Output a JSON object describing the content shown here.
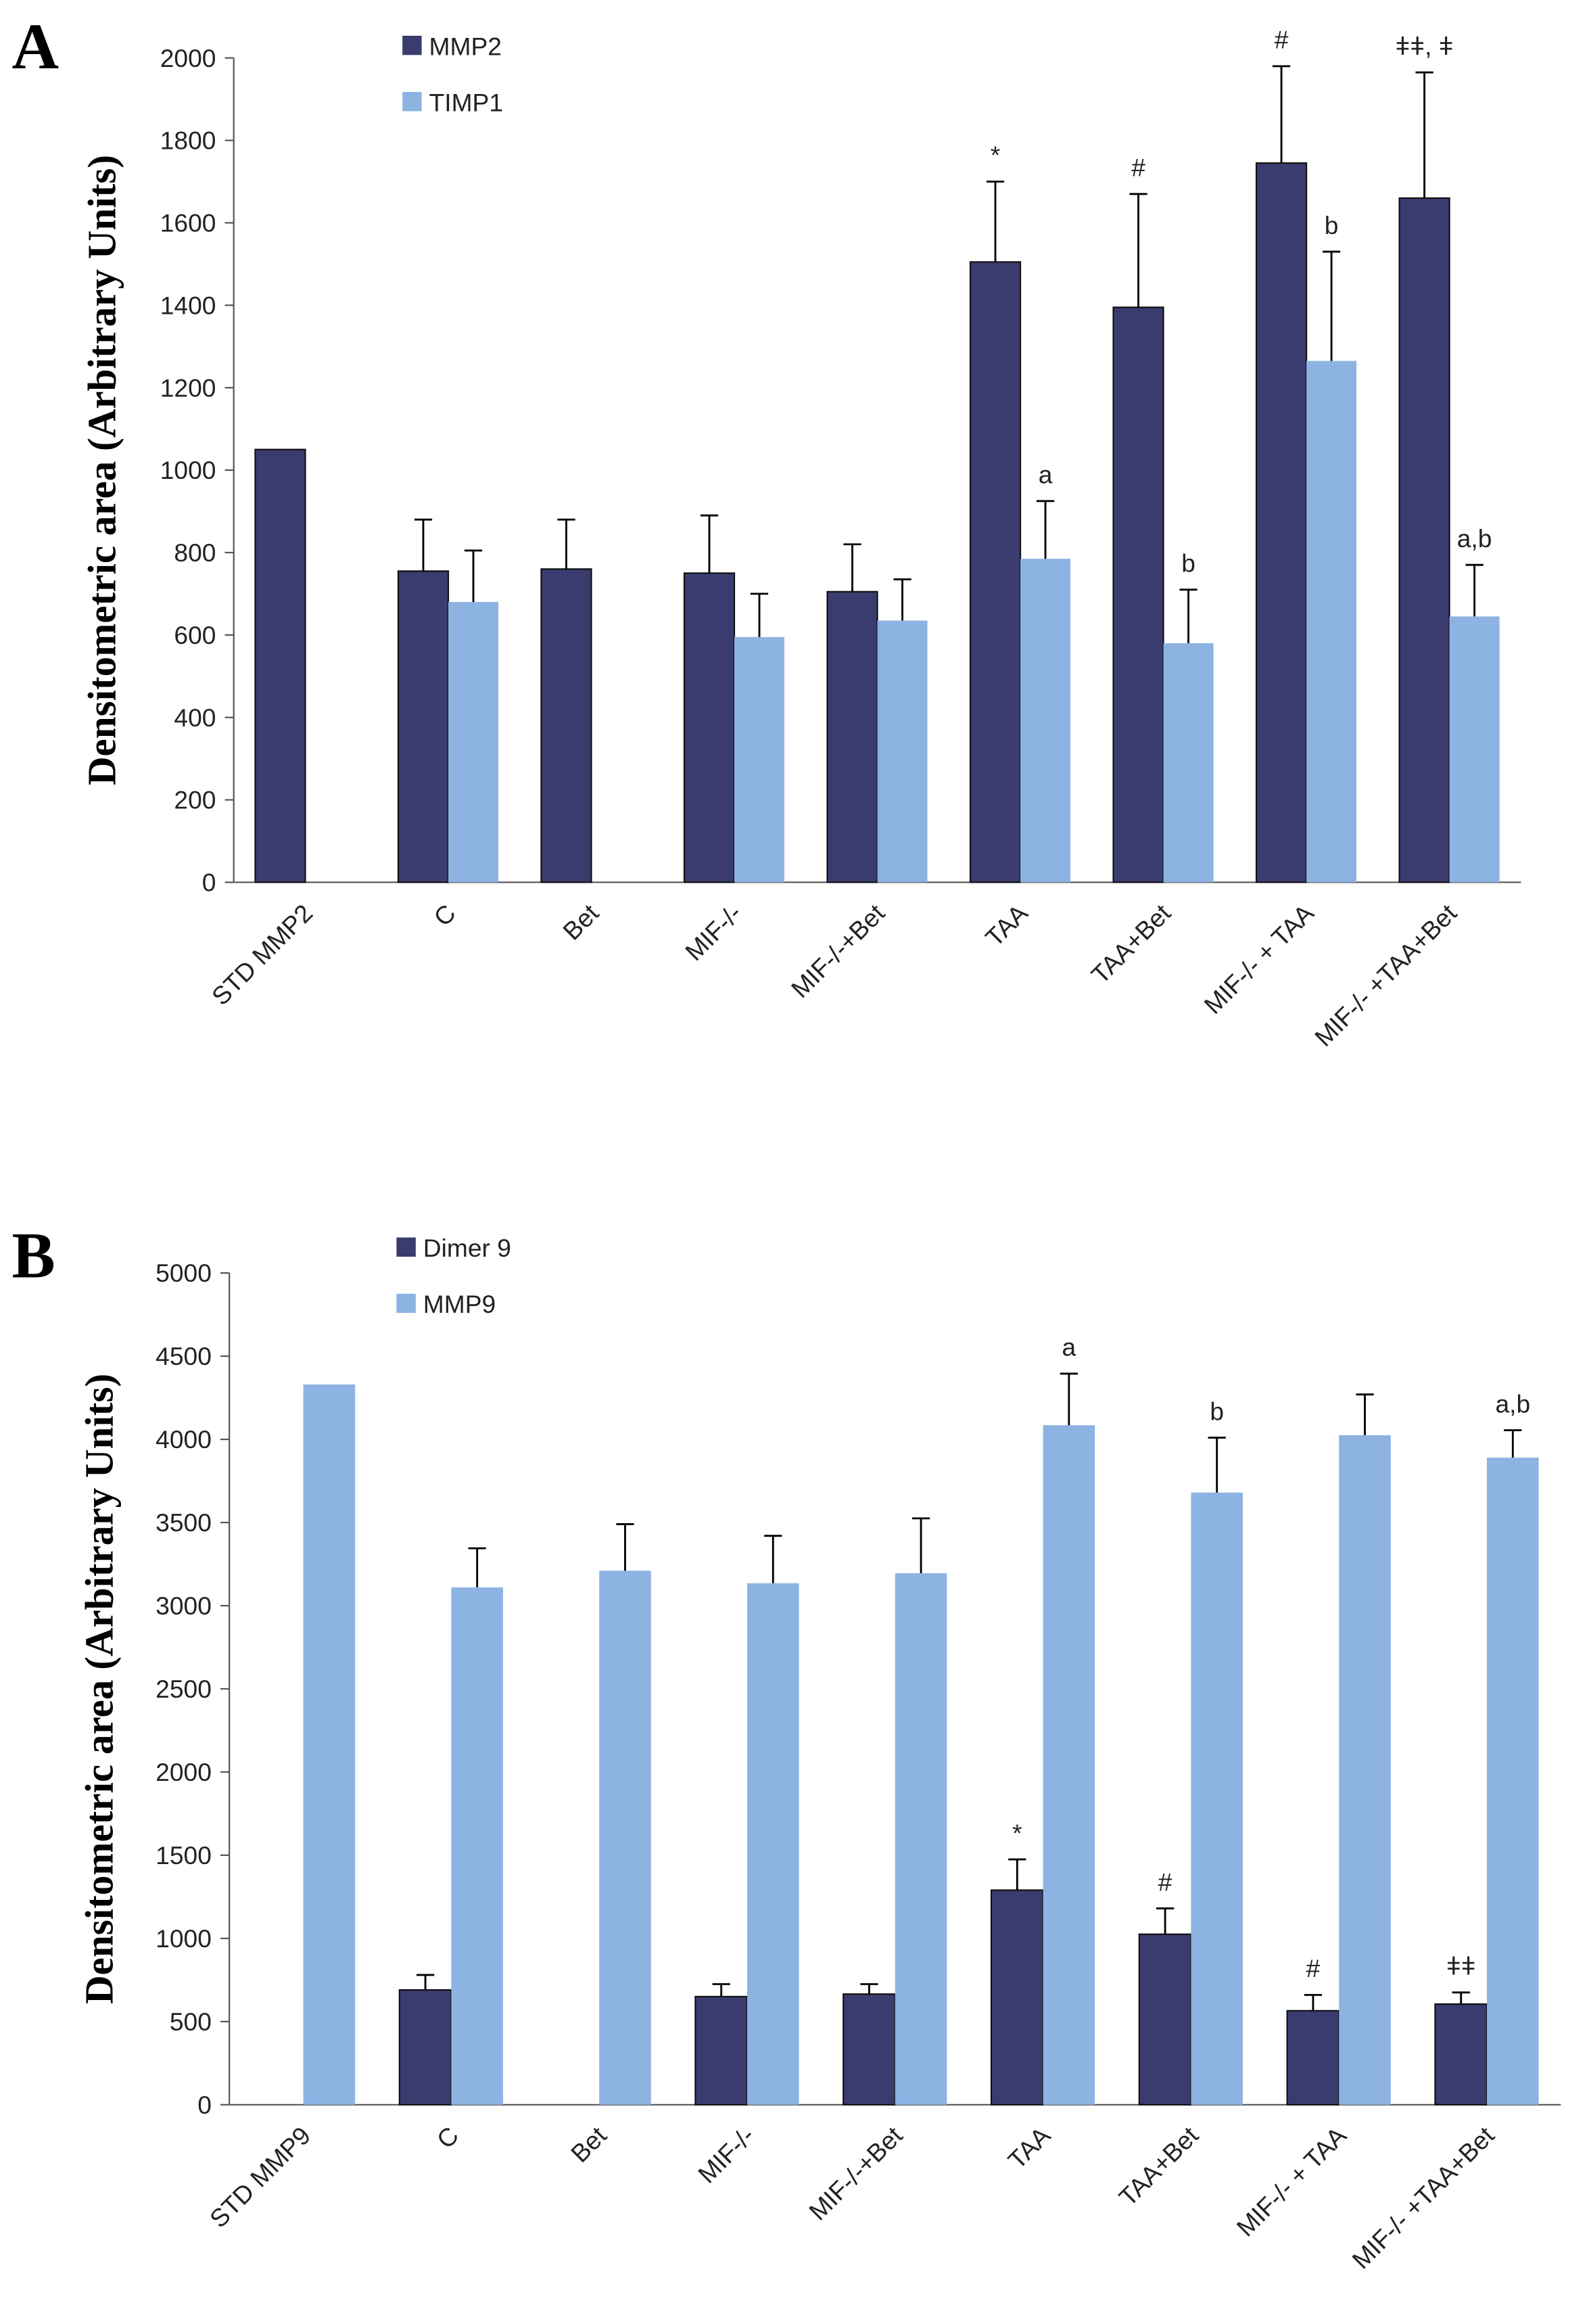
{
  "chart_data": [
    {
      "type": "bar",
      "panel": "A",
      "y_label": "Densitometric area (Arbitrary Units)",
      "categories": [
        "STD MMP2",
        "C",
        "Bet",
        "MIF-/-",
        "MIF-/-+Bet",
        "TAA",
        "TAA+Bet",
        "MIF-/- + TAA",
        "MIF-/- +TAA+Bet"
      ],
      "ylim": [
        0,
        2000
      ],
      "yticks": [
        0,
        200,
        400,
        600,
        800,
        1000,
        1200,
        1400,
        1600,
        1800,
        2000
      ],
      "series": [
        {
          "name": "MMP2",
          "color": "#3a3c70",
          "values": [
            1050,
            755,
            760,
            750,
            705,
            1505,
            1395,
            1745,
            1660
          ],
          "errors": [
            null,
            125,
            120,
            140,
            115,
            195,
            275,
            235,
            305
          ],
          "annotations": [
            null,
            null,
            null,
            null,
            null,
            "*",
            "#",
            "#",
            "ǂǂ, ǂ"
          ]
        },
        {
          "name": "TIMP1",
          "color": "#8db3e2",
          "values": [
            null,
            680,
            null,
            595,
            635,
            785,
            580,
            1265,
            645
          ],
          "errors": [
            null,
            125,
            null,
            105,
            100,
            140,
            130,
            265,
            125
          ],
          "annotations": [
            null,
            null,
            null,
            null,
            null,
            "a",
            "b",
            "b",
            "a,b"
          ]
        }
      ]
    },
    {
      "type": "bar",
      "panel": "B",
      "y_label": "Densitometric area (Arbitrary Units)",
      "categories": [
        "STD MMP9",
        "C",
        "Bet",
        "MIF-/-",
        "MIF-/-+Bet",
        "TAA",
        "TAA+Bet",
        "MIF-/- + TAA",
        "MIF-/- +TAA+Bet"
      ],
      "ylim": [
        0,
        5000
      ],
      "yticks": [
        0,
        500,
        1000,
        1500,
        2000,
        2500,
        3000,
        3500,
        4000,
        4500,
        5000
      ],
      "series": [
        {
          "name": "Dimer 9",
          "color": "#3a3c70",
          "values": [
            null,
            690,
            null,
            650,
            665,
            1290,
            1025,
            565,
            605
          ],
          "errors": [
            null,
            90,
            null,
            75,
            60,
            185,
            155,
            95,
            70
          ],
          "annotations": [
            null,
            null,
            null,
            null,
            null,
            "*",
            "#",
            "#",
            "ǂǂ"
          ]
        },
        {
          "name": "MMP9",
          "color": "#8db3e2",
          "values": [
            4330,
            3110,
            3210,
            3135,
            3195,
            4085,
            3680,
            4025,
            3890
          ],
          "errors": [
            null,
            235,
            280,
            285,
            330,
            310,
            330,
            245,
            165
          ],
          "annotations": [
            null,
            null,
            null,
            null,
            null,
            "a",
            "b",
            null,
            "a,b"
          ]
        }
      ]
    }
  ]
}
